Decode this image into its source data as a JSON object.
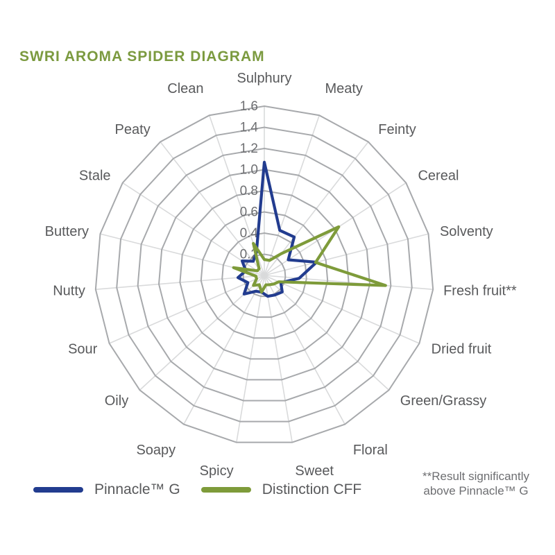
{
  "title": "SWRI AROMA SPIDER DIAGRAM",
  "colors": {
    "title_green": "#7b9a3f",
    "axis_label_gray": "#58595b",
    "tick_gray": "#6d6e71",
    "ring_gray": "#a7a9ac",
    "spoke_gray": "#d9dadb",
    "pinnacle_blue": "#223c8f",
    "distinction_olive": "#7e9b3a"
  },
  "chart_data": {
    "type": "radar",
    "title": "SWRI AROMA SPIDER DIAGRAM",
    "categories": [
      "Sulphury",
      "Meaty",
      "Feinty",
      "Cereal",
      "Solventy",
      "Fresh fruit**",
      "Dried fruit",
      "Green/Grassy",
      "Floral",
      "Sweet",
      "Spicy",
      "Soapy",
      "Oily",
      "Sour",
      "Nutty",
      "Buttery",
      "Stale",
      "Peaty",
      "Clean"
    ],
    "series": [
      {
        "name": "Pinnacle™ G",
        "color": "#223c8f",
        "values": [
          1.07,
          0.45,
          0.46,
          0.27,
          0.51,
          0.33,
          0.17,
          0.23,
          0.21,
          0.2,
          0.16,
          0.17,
          0.26,
          0.17,
          0.25,
          0.18,
          0.25,
          0.17,
          0.23
        ]
      },
      {
        "name": "Distinction CFF",
        "color": "#7e9b3a",
        "values": [
          0.15,
          0.15,
          0.26,
          0.84,
          0.5,
          1.15,
          0.15,
          0.12,
          0.1,
          0.09,
          0.16,
          0.1,
          0.14,
          0.08,
          0.08,
          0.3,
          0.08,
          0.08,
          0.32
        ]
      }
    ],
    "radial_ticks": [
      0.2,
      0.4,
      0.6,
      0.8,
      1.0,
      1.2,
      1.4,
      1.6
    ],
    "rmax": 1.6,
    "rmin": 0,
    "grid": true,
    "legend_position": "bottom"
  },
  "legend": {
    "items": [
      {
        "label": "Pinnacle™ G",
        "color": "#223c8f"
      },
      {
        "label": "Distinction CFF",
        "color": "#7e9b3a"
      }
    ]
  },
  "footnote": {
    "line1": "**Result significantly",
    "line2": "above Pinnacle™ G"
  }
}
